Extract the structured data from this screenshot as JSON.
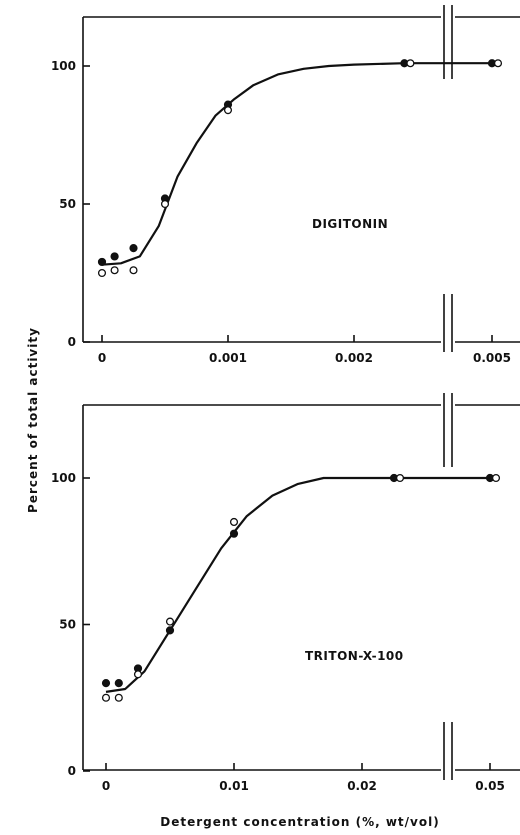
{
  "chart_data": {
    "type": "scatter",
    "ylabel": "Percent of total activity",
    "xlabel": "Detergent concentration (%, wt/vol)",
    "panels": [
      {
        "label": "DIGITONIN",
        "ylim": [
          0,
          115
        ],
        "yticks": [
          "0",
          "50",
          "100"
        ],
        "xticks": [
          "0",
          "0.001",
          "0.002",
          "0.005"
        ],
        "break_xtick": "0.005",
        "series": [
          {
            "marker": "filled",
            "x": [
              0,
              0.0001,
              0.00025,
              0.0005,
              0.001,
              0.0024,
              0.005
            ],
            "y": [
              29,
              31,
              34,
              52,
              86,
              101,
              101
            ]
          },
          {
            "marker": "open",
            "x": [
              0,
              0.0001,
              0.00025,
              0.0005,
              0.001,
              0.0024,
              0.005
            ],
            "y": [
              25,
              26,
              26,
              50,
              84,
              101,
              101
            ]
          }
        ],
        "curve": {
          "x": [
            0,
            0.00015,
            0.0003,
            0.00045,
            0.0006,
            0.00075,
            0.0009,
            0.00105,
            0.0012,
            0.0014,
            0.0016,
            0.0018,
            0.002,
            0.0024,
            0.005
          ],
          "y": [
            28,
            28.5,
            31,
            42,
            60,
            72,
            82,
            88,
            93,
            97,
            99,
            100,
            100.5,
            101,
            101
          ]
        }
      },
      {
        "label": "TRITON-X-100",
        "ylim": [
          0,
          115
        ],
        "yticks": [
          "0",
          "50",
          "100"
        ],
        "xticks": [
          "0",
          "0.01",
          "0.02",
          "0.05"
        ],
        "break_xtick": "0.05",
        "series": [
          {
            "marker": "filled",
            "x": [
              0,
              0.001,
              0.0025,
              0.005,
              0.01,
              0.0225,
              0.05
            ],
            "y": [
              30,
              30,
              35,
              48,
              81,
              100,
              100
            ]
          },
          {
            "marker": "open",
            "x": [
              0,
              0.001,
              0.0025,
              0.005,
              0.01,
              0.0225,
              0.05
            ],
            "y": [
              25,
              25,
              33,
              51,
              85,
              100,
              100
            ]
          }
        ],
        "curve": {
          "x": [
            0,
            0.0015,
            0.003,
            0.005,
            0.007,
            0.009,
            0.011,
            0.013,
            0.015,
            0.017,
            0.0225,
            0.05
          ],
          "y": [
            27,
            28,
            34,
            48,
            62,
            76,
            87,
            94,
            98,
            100,
            100,
            100
          ]
        }
      }
    ]
  }
}
